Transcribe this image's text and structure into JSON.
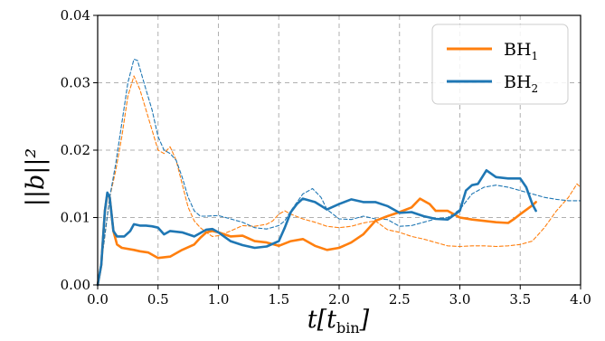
{
  "chart_data": {
    "type": "line",
    "xlabel": {
      "main": "t[t",
      "sub": "bin",
      "close": "]"
    },
    "ylabel": "||b||²",
    "xlim": [
      0.0,
      4.0
    ],
    "ylim": [
      0.0,
      0.04
    ],
    "xticks": [
      "0.0",
      "0.5",
      "1.0",
      "1.5",
      "2.0",
      "2.5",
      "3.0",
      "3.5",
      "4.0"
    ],
    "yticks": [
      "0.00",
      "0.01",
      "0.02",
      "0.03",
      "0.04"
    ],
    "grid": true,
    "legend_position": "top-right",
    "colors": {
      "BH1": "#ff7f0e",
      "BH2": "#1f77b4"
    },
    "legend": [
      {
        "main": "BH",
        "sub": "1",
        "color": "#ff7f0e"
      },
      {
        "main": "BH",
        "sub": "2",
        "color": "#1f77b4"
      }
    ],
    "series": [
      {
        "name": "BH1",
        "style": "solid",
        "color": "#ff7f0e",
        "points": [
          [
            0.0,
            0.0
          ],
          [
            0.03,
            0.003
          ],
          [
            0.06,
            0.011
          ],
          [
            0.08,
            0.0135
          ],
          [
            0.1,
            0.013
          ],
          [
            0.13,
            0.008
          ],
          [
            0.16,
            0.006
          ],
          [
            0.2,
            0.0055
          ],
          [
            0.3,
            0.0052
          ],
          [
            0.35,
            0.005
          ],
          [
            0.42,
            0.0048
          ],
          [
            0.5,
            0.004
          ],
          [
            0.6,
            0.0042
          ],
          [
            0.7,
            0.0052
          ],
          [
            0.8,
            0.006
          ],
          [
            0.85,
            0.007
          ],
          [
            0.9,
            0.0078
          ],
          [
            0.95,
            0.008
          ],
          [
            1.0,
            0.0078
          ],
          [
            1.05,
            0.0075
          ],
          [
            1.1,
            0.0072
          ],
          [
            1.2,
            0.0073
          ],
          [
            1.3,
            0.0065
          ],
          [
            1.4,
            0.0063
          ],
          [
            1.5,
            0.0058
          ],
          [
            1.6,
            0.0065
          ],
          [
            1.7,
            0.0068
          ],
          [
            1.8,
            0.0058
          ],
          [
            1.9,
            0.0052
          ],
          [
            2.0,
            0.0055
          ],
          [
            2.1,
            0.0063
          ],
          [
            2.2,
            0.0075
          ],
          [
            2.3,
            0.0095
          ],
          [
            2.4,
            0.0102
          ],
          [
            2.5,
            0.0108
          ],
          [
            2.6,
            0.0115
          ],
          [
            2.67,
            0.0128
          ],
          [
            2.75,
            0.012
          ],
          [
            2.8,
            0.011
          ],
          [
            2.9,
            0.011
          ],
          [
            3.0,
            0.01
          ],
          [
            3.1,
            0.0097
          ],
          [
            3.2,
            0.0095
          ],
          [
            3.3,
            0.0093
          ],
          [
            3.4,
            0.0092
          ],
          [
            3.45,
            0.0098
          ],
          [
            3.5,
            0.0105
          ],
          [
            3.6,
            0.0118
          ],
          [
            3.63,
            0.0123
          ]
        ]
      },
      {
        "name": "BH2",
        "style": "solid",
        "color": "#1f77b4",
        "points": [
          [
            0.0,
            0.0
          ],
          [
            0.03,
            0.003
          ],
          [
            0.06,
            0.011
          ],
          [
            0.08,
            0.0137
          ],
          [
            0.1,
            0.013
          ],
          [
            0.13,
            0.008
          ],
          [
            0.16,
            0.0072
          ],
          [
            0.22,
            0.0072
          ],
          [
            0.27,
            0.008
          ],
          [
            0.3,
            0.009
          ],
          [
            0.35,
            0.0088
          ],
          [
            0.4,
            0.0088
          ],
          [
            0.45,
            0.0087
          ],
          [
            0.5,
            0.0085
          ],
          [
            0.55,
            0.0075
          ],
          [
            0.6,
            0.008
          ],
          [
            0.7,
            0.0078
          ],
          [
            0.8,
            0.0072
          ],
          [
            0.9,
            0.0082
          ],
          [
            0.95,
            0.0083
          ],
          [
            1.0,
            0.0078
          ],
          [
            1.1,
            0.0065
          ],
          [
            1.2,
            0.0059
          ],
          [
            1.3,
            0.0055
          ],
          [
            1.4,
            0.0057
          ],
          [
            1.5,
            0.0065
          ],
          [
            1.55,
            0.0085
          ],
          [
            1.6,
            0.0108
          ],
          [
            1.65,
            0.012
          ],
          [
            1.7,
            0.0128
          ],
          [
            1.8,
            0.0123
          ],
          [
            1.9,
            0.0112
          ],
          [
            2.0,
            0.012
          ],
          [
            2.1,
            0.0127
          ],
          [
            2.2,
            0.0123
          ],
          [
            2.3,
            0.0123
          ],
          [
            2.4,
            0.0117
          ],
          [
            2.5,
            0.0107
          ],
          [
            2.6,
            0.0108
          ],
          [
            2.7,
            0.0102
          ],
          [
            2.8,
            0.0098
          ],
          [
            2.9,
            0.0097
          ],
          [
            3.0,
            0.011
          ],
          [
            3.05,
            0.014
          ],
          [
            3.1,
            0.0148
          ],
          [
            3.15,
            0.015
          ],
          [
            3.22,
            0.017
          ],
          [
            3.3,
            0.016
          ],
          [
            3.4,
            0.0158
          ],
          [
            3.5,
            0.0158
          ],
          [
            3.55,
            0.0145
          ],
          [
            3.6,
            0.012
          ],
          [
            3.63,
            0.011
          ]
        ]
      },
      {
        "name": "BH1-dashed",
        "style": "dashed",
        "color": "#ff7f0e",
        "points": [
          [
            0.0,
            0.0
          ],
          [
            0.05,
            0.006
          ],
          [
            0.1,
            0.013
          ],
          [
            0.15,
            0.017
          ],
          [
            0.2,
            0.022
          ],
          [
            0.25,
            0.028
          ],
          [
            0.3,
            0.031
          ],
          [
            0.35,
            0.029
          ],
          [
            0.4,
            0.026
          ],
          [
            0.45,
            0.023
          ],
          [
            0.5,
            0.02
          ],
          [
            0.55,
            0.0195
          ],
          [
            0.6,
            0.0205
          ],
          [
            0.65,
            0.0185
          ],
          [
            0.7,
            0.015
          ],
          [
            0.75,
            0.0115
          ],
          [
            0.8,
            0.0095
          ],
          [
            0.85,
            0.0085
          ],
          [
            0.9,
            0.0078
          ],
          [
            0.95,
            0.0072
          ],
          [
            1.0,
            0.0073
          ],
          [
            1.1,
            0.008
          ],
          [
            1.2,
            0.0088
          ],
          [
            1.3,
            0.0087
          ],
          [
            1.4,
            0.009
          ],
          [
            1.45,
            0.0095
          ],
          [
            1.5,
            0.0105
          ],
          [
            1.55,
            0.011
          ],
          [
            1.6,
            0.0105
          ],
          [
            1.7,
            0.0098
          ],
          [
            1.8,
            0.0093
          ],
          [
            1.9,
            0.0087
          ],
          [
            2.0,
            0.0085
          ],
          [
            2.1,
            0.0087
          ],
          [
            2.2,
            0.0092
          ],
          [
            2.3,
            0.0095
          ],
          [
            2.4,
            0.0082
          ],
          [
            2.5,
            0.0078
          ],
          [
            2.6,
            0.0072
          ],
          [
            2.7,
            0.0068
          ],
          [
            2.8,
            0.0063
          ],
          [
            2.9,
            0.0058
          ],
          [
            3.0,
            0.0057
          ],
          [
            3.1,
            0.0058
          ],
          [
            3.2,
            0.0058
          ],
          [
            3.3,
            0.0057
          ],
          [
            3.4,
            0.0058
          ],
          [
            3.5,
            0.006
          ],
          [
            3.6,
            0.0065
          ],
          [
            3.7,
            0.0085
          ],
          [
            3.8,
            0.011
          ],
          [
            3.9,
            0.013
          ],
          [
            3.97,
            0.015
          ],
          [
            4.0,
            0.0145
          ]
        ]
      },
      {
        "name": "BH2-dashed",
        "style": "dashed",
        "color": "#1f77b4",
        "points": [
          [
            0.0,
            0.0
          ],
          [
            0.05,
            0.006
          ],
          [
            0.1,
            0.013
          ],
          [
            0.15,
            0.018
          ],
          [
            0.2,
            0.024
          ],
          [
            0.25,
            0.03
          ],
          [
            0.3,
            0.0335
          ],
          [
            0.33,
            0.0333
          ],
          [
            0.4,
            0.029
          ],
          [
            0.45,
            0.026
          ],
          [
            0.5,
            0.022
          ],
          [
            0.55,
            0.02
          ],
          [
            0.6,
            0.0195
          ],
          [
            0.65,
            0.0185
          ],
          [
            0.7,
            0.016
          ],
          [
            0.75,
            0.013
          ],
          [
            0.8,
            0.011
          ],
          [
            0.85,
            0.0102
          ],
          [
            0.9,
            0.0102
          ],
          [
            1.0,
            0.0103
          ],
          [
            1.1,
            0.0098
          ],
          [
            1.2,
            0.0093
          ],
          [
            1.3,
            0.0085
          ],
          [
            1.4,
            0.0083
          ],
          [
            1.5,
            0.0088
          ],
          [
            1.55,
            0.0095
          ],
          [
            1.6,
            0.011
          ],
          [
            1.7,
            0.0135
          ],
          [
            1.78,
            0.0143
          ],
          [
            1.85,
            0.013
          ],
          [
            1.9,
            0.0112
          ],
          [
            2.0,
            0.0098
          ],
          [
            2.1,
            0.0097
          ],
          [
            2.2,
            0.0102
          ],
          [
            2.3,
            0.0098
          ],
          [
            2.4,
            0.0097
          ],
          [
            2.5,
            0.0087
          ],
          [
            2.6,
            0.0088
          ],
          [
            2.7,
            0.0093
          ],
          [
            2.8,
            0.0098
          ],
          [
            2.9,
            0.01
          ],
          [
            3.0,
            0.0112
          ],
          [
            3.1,
            0.0135
          ],
          [
            3.2,
            0.0145
          ],
          [
            3.3,
            0.0148
          ],
          [
            3.4,
            0.0145
          ],
          [
            3.5,
            0.014
          ],
          [
            3.6,
            0.0135
          ],
          [
            3.7,
            0.013
          ],
          [
            3.8,
            0.0127
          ],
          [
            3.9,
            0.0125
          ],
          [
            4.0,
            0.0125
          ]
        ]
      }
    ]
  }
}
